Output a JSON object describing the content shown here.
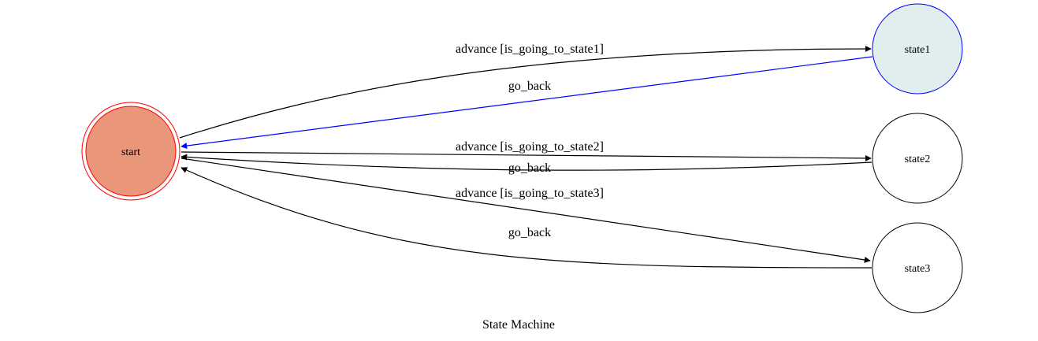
{
  "title": "State Machine",
  "nodes": {
    "start": {
      "label": "start",
      "fill": "#e9967a",
      "stroke": "#ff0000",
      "double": true
    },
    "state1": {
      "label": "state1",
      "fill": "#e0eeee",
      "stroke": "#0000ff",
      "double": false
    },
    "state2": {
      "label": "state2",
      "fill": "#ffffff",
      "stroke": "#000000",
      "double": false
    },
    "state3": {
      "label": "state3",
      "fill": "#ffffff",
      "stroke": "#000000",
      "double": false
    }
  },
  "edges": [
    {
      "from": "start",
      "to": "state1",
      "label": "advance [is_going_to_state1]",
      "color": "#000000"
    },
    {
      "from": "state1",
      "to": "start",
      "label": "go_back",
      "color": "#0000ff"
    },
    {
      "from": "start",
      "to": "state2",
      "label": "advance [is_going_to_state2]",
      "color": "#000000"
    },
    {
      "from": "state2",
      "to": "start",
      "label": "go_back",
      "color": "#000000"
    },
    {
      "from": "start",
      "to": "state3",
      "label": "advance [is_going_to_state3]",
      "color": "#000000"
    },
    {
      "from": "state3",
      "to": "start",
      "label": "go_back",
      "color": "#000000"
    }
  ]
}
